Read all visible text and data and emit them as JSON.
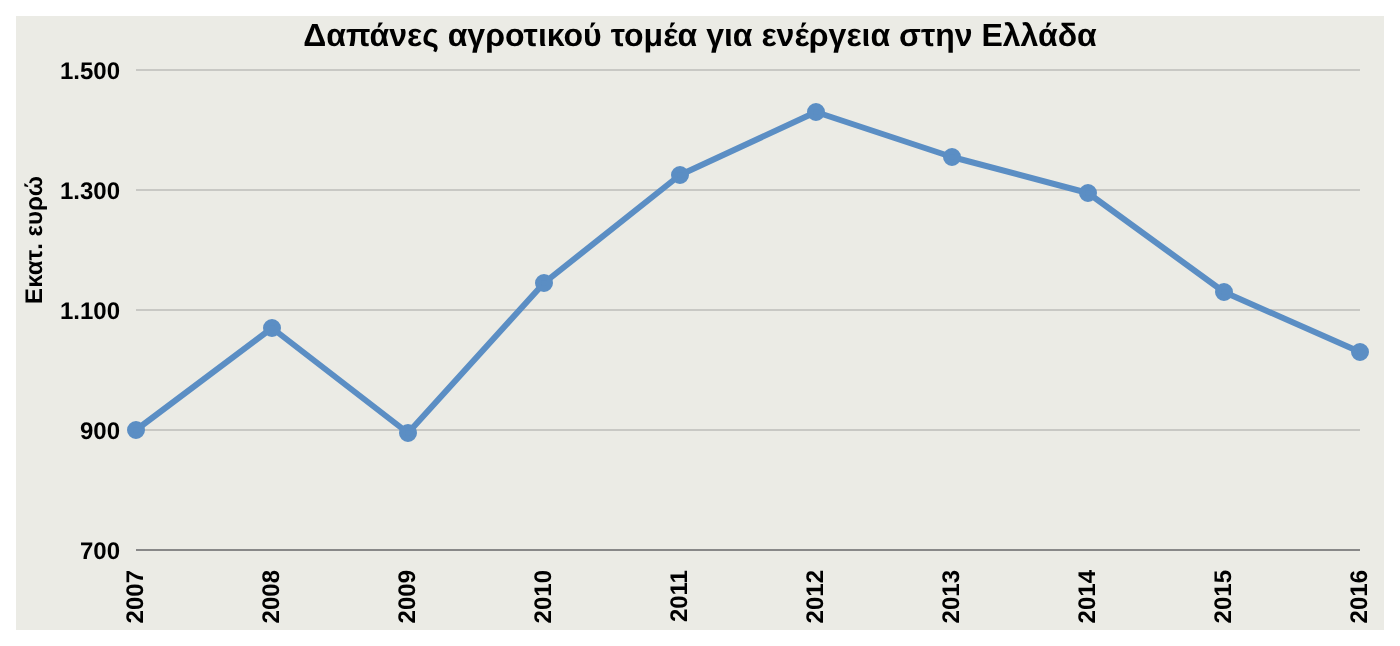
{
  "chart_data": {
    "type": "line",
    "title": "Δαπάνες αγροτικού τομέα για ενέργεια στην Ελλάδα",
    "ylabel": "Εκατ. ευρώ",
    "categories": [
      "2007",
      "2008",
      "2009",
      "2010",
      "2011",
      "2012",
      "2013",
      "2014",
      "2015",
      "2016"
    ],
    "series": [
      {
        "color": "#5b8ec4",
        "values": [
          900,
          1070,
          895,
          1145,
          1325,
          1430,
          1355,
          1295,
          1130,
          1030
        ]
      }
    ],
    "ylim": [
      700,
      1500
    ],
    "yticks": [
      {
        "value": 700,
        "label": "700"
      },
      {
        "value": 900,
        "label": "900"
      },
      {
        "value": 1100,
        "label": "1.100"
      },
      {
        "value": 1300,
        "label": "1.300"
      },
      {
        "value": 1500,
        "label": "1.500"
      }
    ],
    "grid": "y",
    "marker": "circle",
    "line_style": "solid"
  }
}
